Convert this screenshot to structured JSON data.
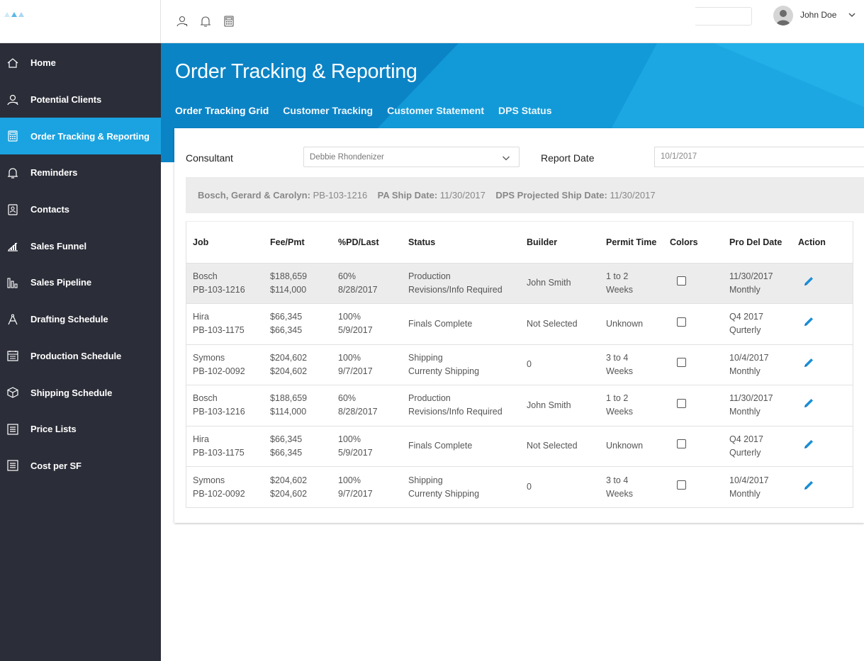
{
  "topbar": {
    "user_name": "John Doe",
    "icons": [
      "person-icon",
      "bell-icon",
      "calculator-icon"
    ]
  },
  "sidebar": {
    "items": [
      {
        "label": "Home",
        "icon": "home-icon"
      },
      {
        "label": "Potential Clients",
        "icon": "person-icon"
      },
      {
        "label": "Order Tracking & Reporting",
        "icon": "calculator-icon",
        "active": true
      },
      {
        "label": "Reminders",
        "icon": "bell-icon"
      },
      {
        "label": "Contacts",
        "icon": "contact-card-icon"
      },
      {
        "label": "Sales Funnel",
        "icon": "bar-chart-icon"
      },
      {
        "label": "Sales Pipeline",
        "icon": "pipeline-icon"
      },
      {
        "label": "Drafting Schedule",
        "icon": "compass-icon"
      },
      {
        "label": "Production Schedule",
        "icon": "calendar-icon"
      },
      {
        "label": "Shipping Schedule",
        "icon": "box-icon"
      },
      {
        "label": "Price Lists",
        "icon": "list-icon"
      },
      {
        "label": "Cost per SF",
        "icon": "list-icon"
      }
    ]
  },
  "hero": {
    "title": "Order Tracking & Reporting",
    "tabs": [
      {
        "label": "Order Tracking Grid"
      },
      {
        "label": "Customer Tracking"
      },
      {
        "label": "Customer Statement"
      },
      {
        "label": "DPS Status"
      }
    ]
  },
  "filters": {
    "consultant_label": "Consultant",
    "consultant_value": "Debbie Rhondenizer",
    "report_date_label": "Report Date",
    "report_date_value": "10/1/2017"
  },
  "summary": {
    "client_label": "Bosch, Gerard & Carolyn:",
    "client_value": "PB-103-1216",
    "pa_ship_label": "PA Ship Date:",
    "pa_ship_value": "11/30/2017",
    "dps_label": "DPS Projected Ship Date:",
    "dps_value": "11/30/2017"
  },
  "table": {
    "columns": [
      "Job",
      "Fee/Pmt",
      "%PD/Last",
      "Status",
      "Builder",
      "Permit Time",
      "Colors",
      "Pro Del Date",
      "Action"
    ],
    "rows": [
      {
        "job1": "Bosch",
        "job2": "PB-103-1216",
        "fee1": "$188,659",
        "fee2": "$114,000",
        "pd1": "60%",
        "pd2": "8/28/2017",
        "status1": "Production",
        "status2": "Revisions/Info Required",
        "builder": "John Smith",
        "permit1": "1 to 2",
        "permit2": "Weeks",
        "del1": "11/30/2017",
        "del2": "Monthly"
      },
      {
        "job1": "Hira",
        "job2": "PB-103-1175",
        "fee1": "$66,345",
        "fee2": "$66,345",
        "pd1": "100%",
        "pd2": "5/9/2017",
        "status1": "Finals Complete",
        "status2": "",
        "builder": "Not Selected",
        "permit1": "Unknown",
        "permit2": "",
        "del1": "Q4 2017",
        "del2": "Qurterly"
      },
      {
        "job1": "Symons",
        "job2": "PB-102-0092",
        "fee1": "$204,602",
        "fee2": "$204,602",
        "pd1": "100%",
        "pd2": "9/7/2017",
        "status1": "Shipping",
        "status2": "Currenty Shipping",
        "builder": "0",
        "permit1": "3 to 4",
        "permit2": "Weeks",
        "del1": "10/4/2017",
        "del2": "Monthly"
      },
      {
        "job1": "Bosch",
        "job2": "PB-103-1216",
        "fee1": "$188,659",
        "fee2": "$114,000",
        "pd1": "60%",
        "pd2": "8/28/2017",
        "status1": "Production",
        "status2": "Revisions/Info Required",
        "builder": "John Smith",
        "permit1": "1 to 2",
        "permit2": "Weeks",
        "del1": "11/30/2017",
        "del2": "Monthly"
      },
      {
        "job1": "Hira",
        "job2": "PB-103-1175",
        "fee1": "$66,345",
        "fee2": "$66,345",
        "pd1": "100%",
        "pd2": "5/9/2017",
        "status1": "Finals Complete",
        "status2": "",
        "builder": "Not Selected",
        "permit1": "Unknown",
        "permit2": "",
        "del1": "Q4 2017",
        "del2": "Qurterly"
      },
      {
        "job1": "Symons",
        "job2": "PB-102-0092",
        "fee1": "$204,602",
        "fee2": "$204,602",
        "pd1": "100%",
        "pd2": "9/7/2017",
        "status1": "Shipping",
        "status2": "Currenty Shipping",
        "builder": "0",
        "permit1": "3 to 4",
        "permit2": "Weeks",
        "del1": "10/4/2017",
        "del2": "Monthly"
      }
    ]
  },
  "colors": {
    "sidebar_bg": "#2b2d38",
    "accent": "#1aa3e0",
    "hero_bg": "#0f8fd0",
    "edit_icon": "#1a8fd6"
  }
}
